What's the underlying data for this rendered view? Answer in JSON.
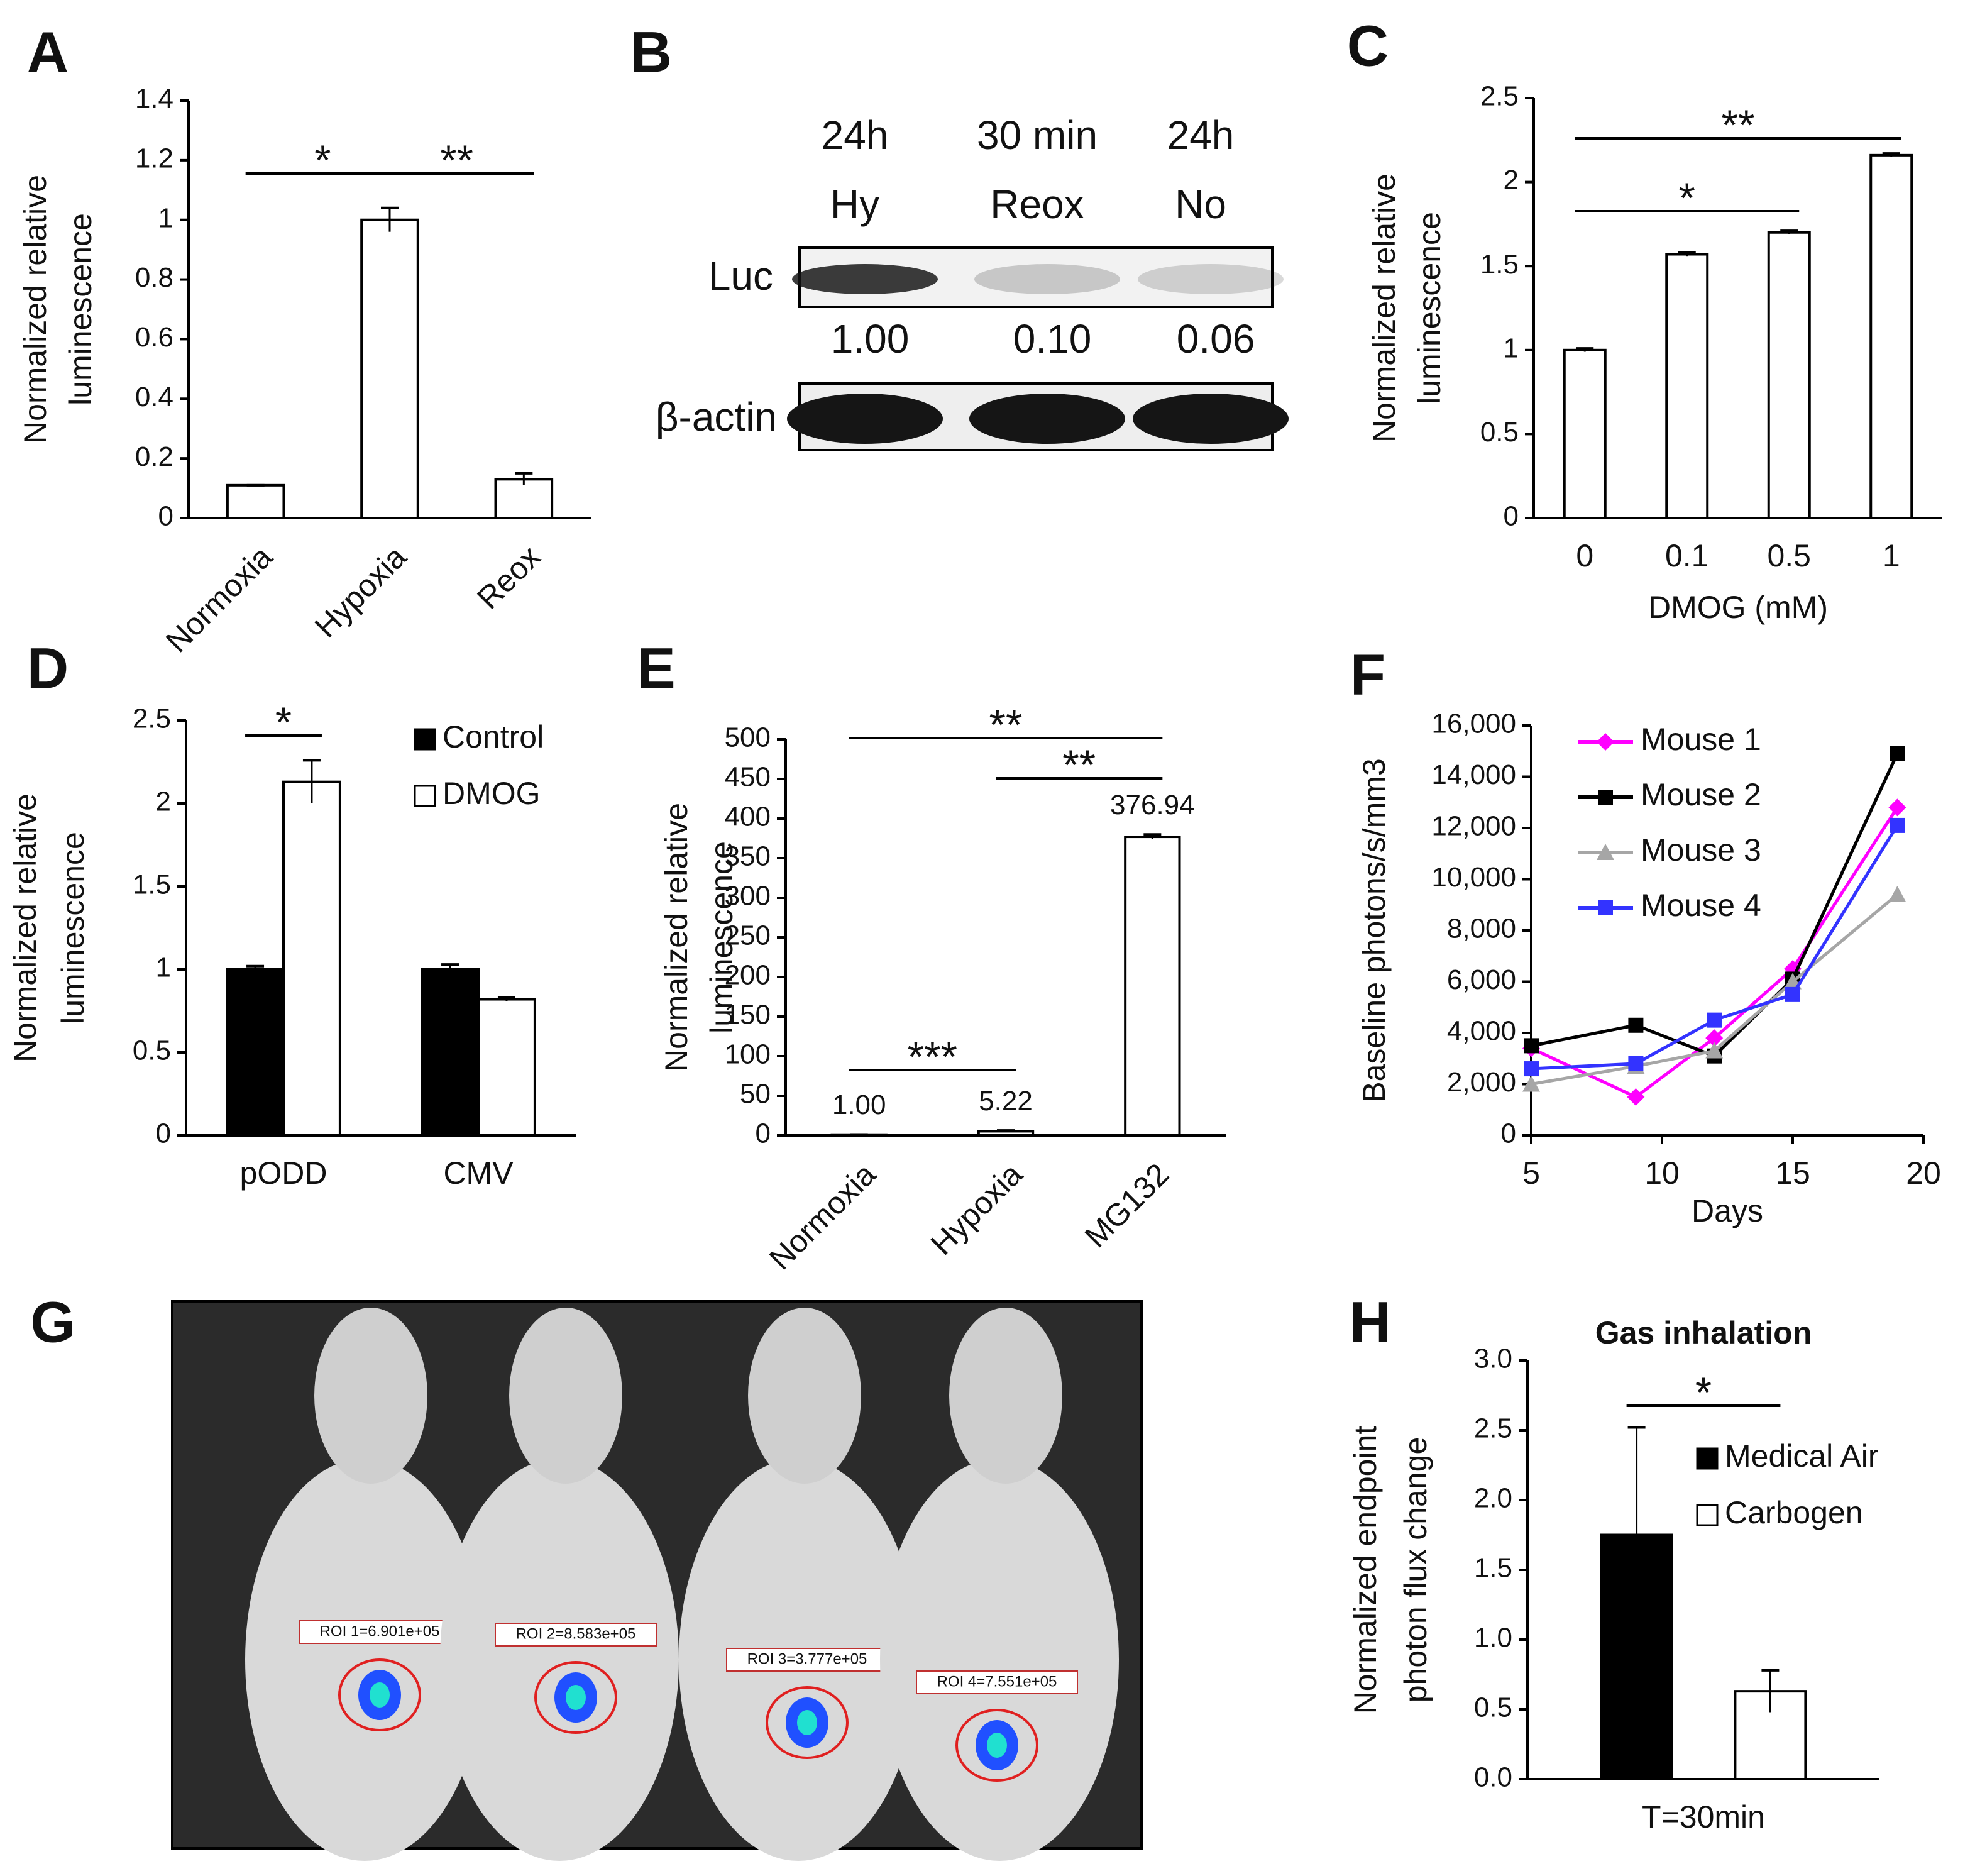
{
  "chart_data": [
    {
      "type": "bar",
      "panel": "A",
      "ylabel": [
        "Normalized relative",
        "luminescence"
      ],
      "categories": [
        "Normoxia",
        "Hypoxia",
        "Reox"
      ],
      "values": [
        0.11,
        1.0,
        0.13
      ],
      "errors": [
        0,
        0.04,
        0.02
      ],
      "color": "#ffffff",
      "ylim": [
        0,
        1.4
      ],
      "yticks": [
        0,
        0.2,
        0.4,
        0.6,
        0.8,
        1,
        1.2,
        1.4
      ],
      "significance": [
        {
          "label": "*",
          "between": [
            0,
            1
          ]
        },
        {
          "label": "**",
          "between": [
            1,
            2
          ]
        }
      ]
    },
    {
      "type": "blot",
      "panel": "B",
      "columns": [
        [
          "24h",
          "Hy"
        ],
        [
          "30 min",
          "Reox"
        ],
        [
          "24h",
          "No"
        ]
      ],
      "rows": [
        "Luc",
        "β-actin"
      ],
      "band_values": [
        1.0,
        0.1,
        0.06
      ],
      "value_labels": [
        "1.00",
        "0.10",
        "0.06"
      ]
    },
    {
      "type": "bar",
      "panel": "C",
      "ylabel": [
        "Normalized relative",
        "luminescence"
      ],
      "xlabel": "DMOG (mM)",
      "categories": [
        "0",
        "0.1",
        "0.5",
        "1"
      ],
      "values": [
        1.0,
        1.57,
        1.7,
        2.16
      ],
      "errors": [
        0.01,
        0.01,
        0.01,
        0.01
      ],
      "color": "#ffffff",
      "ylim": [
        0,
        2.5
      ],
      "yticks": [
        0,
        0.5,
        1,
        1.5,
        2,
        2.5
      ],
      "significance": [
        {
          "label": "*",
          "between": [
            0,
            2
          ]
        },
        {
          "label": "**",
          "between": [
            0,
            3
          ]
        }
      ]
    },
    {
      "type": "bar",
      "panel": "D",
      "ylabel": [
        "Normalized relative",
        "luminescence"
      ],
      "categories": [
        "pODD",
        "CMV"
      ],
      "series": [
        {
          "name": "Control",
          "color": "#000000",
          "values": [
            1.0,
            1.0
          ],
          "errors": [
            0.02,
            0.03
          ]
        },
        {
          "name": "DMOG",
          "color": "#ffffff",
          "values": [
            2.13,
            0.82
          ],
          "errors": [
            0.13,
            0.01
          ]
        }
      ],
      "ylim": [
        0,
        2.5
      ],
      "yticks": [
        0,
        0.5,
        1,
        1.5,
        2,
        2.5
      ],
      "legend": "upper right",
      "significance": [
        {
          "label": "*",
          "between": [
            0,
            1
          ]
        }
      ]
    },
    {
      "type": "bar",
      "panel": "E",
      "ylabel": [
        "Normalized relative",
        "luminescence"
      ],
      "categories": [
        "Normoxia",
        "Hypoxia",
        "MG132"
      ],
      "values": [
        1.0,
        5.22,
        376.94
      ],
      "value_labels": [
        "1.00",
        "5.22",
        "376.94"
      ],
      "errors": [
        0.2,
        1,
        3
      ],
      "color": "#ffffff",
      "ylim": [
        0,
        500
      ],
      "yticks": [
        0,
        50,
        100,
        150,
        200,
        250,
        300,
        350,
        400,
        450,
        500
      ],
      "significance": [
        {
          "label": "**",
          "between": [
            0,
            2
          ]
        },
        {
          "label": "**",
          "between": [
            1,
            2
          ]
        },
        {
          "label": "***",
          "between": [
            0,
            1
          ]
        }
      ]
    },
    {
      "type": "line",
      "panel": "F",
      "ylabel": [
        "Baseline photons/s/mm3"
      ],
      "xlabel": "Days",
      "x": [
        5,
        9,
        12,
        15,
        19
      ],
      "series": [
        {
          "name": "Mouse 1",
          "color": "#ff00ff",
          "marker": "diamond",
          "values": [
            3400,
            1500,
            3800,
            6500,
            12800
          ]
        },
        {
          "name": "Mouse 2",
          "color": "#000000",
          "marker": "square",
          "values": [
            3500,
            4300,
            3100,
            6100,
            14900
          ]
        },
        {
          "name": "Mouse 3",
          "color": "#a6a6a6",
          "marker": "triangle",
          "values": [
            2000,
            2700,
            3300,
            6000,
            9400
          ]
        },
        {
          "name": "Mouse 4",
          "color": "#3333ff",
          "marker": "square",
          "values": [
            2600,
            2800,
            4500,
            5500,
            12100
          ]
        }
      ],
      "xlim": [
        5,
        20
      ],
      "xticks": [
        5,
        10,
        15,
        20
      ],
      "ylim": [
        0,
        16000
      ],
      "yticks": [
        0,
        {
          "value": 2000,
          "label": "2,000"
        },
        {
          "value": 4000,
          "label": "4,000"
        },
        {
          "value": 6000,
          "label": "6,000"
        },
        {
          "value": 8000,
          "label": "8,000"
        },
        {
          "value": 10000,
          "label": "10,000"
        },
        {
          "value": 12000,
          "label": "12,000"
        },
        {
          "value": 14000,
          "label": "14,000"
        },
        {
          "value": 16000,
          "label": "16,000"
        }
      ],
      "legend": "upper left"
    },
    {
      "type": "image",
      "panel": "G",
      "roi_labels": [
        "ROI 1=6.901e+05",
        "ROI 2=8.583e+05",
        "ROI 3=3.777e+05",
        "ROI 4=7.551e+05"
      ]
    },
    {
      "type": "bar",
      "panel": "H",
      "title": "Gas inhalation",
      "ylabel": [
        "Normalized endpoint",
        "photon flux change"
      ],
      "categories": [
        "T=30min"
      ],
      "series": [
        {
          "name": "Medical Air",
          "color": "#000000",
          "values": [
            1.75
          ],
          "errors": [
            0.77
          ]
        },
        {
          "name": "Carbogen",
          "color": "#ffffff",
          "values": [
            0.63
          ],
          "errors": [
            0.15
          ]
        }
      ],
      "ylim": [
        0,
        3
      ],
      "yticks": [
        {
          "value": 0,
          "label": "0.0"
        },
        {
          "value": 0.5,
          "label": "0.5"
        },
        {
          "value": 1,
          "label": "1.0"
        },
        {
          "value": 1.5,
          "label": "1.5"
        },
        {
          "value": 2,
          "label": "2.0"
        },
        {
          "value": 2.5,
          "label": "2.5"
        },
        {
          "value": 3,
          "label": "3.0"
        }
      ],
      "legend": "upper right",
      "significance": [
        {
          "label": "*",
          "between": [
            0,
            1
          ]
        }
      ]
    }
  ]
}
